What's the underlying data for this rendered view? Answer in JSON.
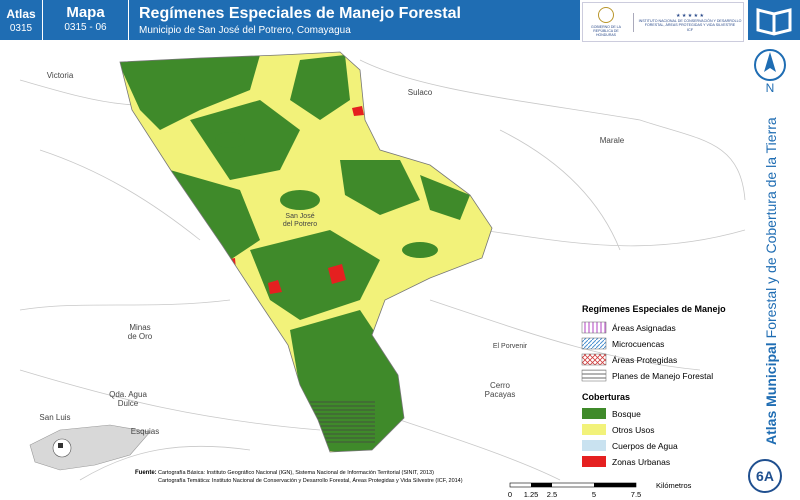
{
  "header": {
    "atlas_label": "Atlas",
    "atlas_code": "0315",
    "map_label": "Mapa",
    "map_code": "0315 - 06",
    "title": "Regímenes Especiales de Manejo Forestal",
    "subtitle": "Municipio de San José del Potrero, Comayagua"
  },
  "logos": {
    "government": "GOBIERNO DE LA REPÚBLICA DE HONDURAS",
    "institute": "INSTITUTO NACIONAL DE CONSERVACIÓN Y DESARROLLO FORESTAL, ÁREAS PROTEGIDAS Y VIDA SILVESTRE",
    "institute_short": "ICF"
  },
  "sidebar": {
    "north": "N",
    "atlas_title_bold": "Atlas Municipal",
    "atlas_title": "Forestal y de Cobertura de la Tierra",
    "plate": "6A"
  },
  "places": [
    {
      "lines": [
        "Victoria"
      ],
      "size": 8
    },
    {
      "lines": [
        "Sulaco"
      ],
      "size": 8
    },
    {
      "lines": [
        "Marale"
      ],
      "size": 8
    },
    {
      "lines": [
        "Cerro",
        "Pacayas"
      ],
      "size": 8
    },
    {
      "lines": [
        "El Porvenir"
      ],
      "size": 7
    },
    {
      "lines": [
        "Minas",
        "de Oro"
      ],
      "size": 8
    },
    {
      "lines": [
        "San Luis"
      ],
      "size": 8
    },
    {
      "lines": [
        "Esquias"
      ],
      "size": 8
    },
    {
      "lines": [
        "Qda. Agua",
        "Dulce"
      ],
      "size": 8
    },
    {
      "lines": [
        "San José",
        "del Potrero"
      ],
      "size": 7
    }
  ],
  "legend": {
    "regimes_title": "Regímenes Especiales de Manejo",
    "regimes": [
      "Áreas Asignadas",
      "Microcuencas",
      "Áreas Protegidas",
      "Planes de Manejo Forestal"
    ],
    "cover_title": "Coberturas",
    "covers": [
      "Bosque",
      "Otros Usos",
      "Cuerpos de Agua",
      "Zonas Urbanas"
    ]
  },
  "scale": {
    "ticks": [
      "0",
      "1.25",
      "2.5",
      "5",
      "7.5"
    ],
    "unit": "Kilómetros"
  },
  "source": {
    "label": "Fuente:",
    "lines": [
      "Cartografía Básica: Instituto Geográfico Nacional (IGN), Sistema Nacional de Información Territorial (SINIT, 2013)",
      "Cartografía Temática: Instituto Nacional de Conservación y Desarrollo Forestal, Áreas Protegidas y Vida Silvestre (ICF, 2014)"
    ]
  }
}
